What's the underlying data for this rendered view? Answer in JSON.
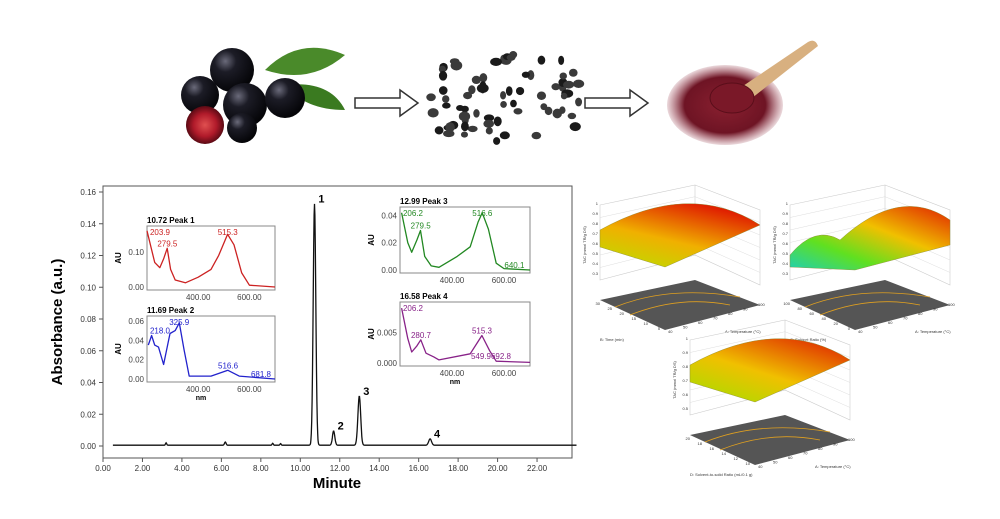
{
  "process": {
    "steps": [
      "fresh aronia berries",
      "dried berries",
      "berry powder"
    ],
    "arrow_color": "#333333"
  },
  "chart_data": {
    "type": "line",
    "title": "",
    "xlabel": "Minute",
    "ylabel": "Absorbance (a.u.)",
    "xlim": [
      0,
      24
    ],
    "ylim": [
      0,
      0.16
    ],
    "xticks": [
      "0.00",
      "2.00",
      "4.00",
      "6.00",
      "8.00",
      "10.00",
      "12.00",
      "14.00",
      "16.00",
      "18.00",
      "20.00",
      "22.00"
    ],
    "yticks": [
      "0.00",
      "0.02",
      "0.04",
      "0.06",
      "0.08",
      "0.10",
      "0.12",
      "0.14",
      "0.16"
    ],
    "line_color": "#111111",
    "peaks": [
      {
        "label": "1",
        "rt": 10.72,
        "height": 0.152,
        "width": 0.13
      },
      {
        "label": "2",
        "rt": 11.69,
        "height": 0.009,
        "width": 0.12
      },
      {
        "label": "3",
        "rt": 12.99,
        "height": 0.031,
        "width": 0.14
      },
      {
        "label": "4",
        "rt": 16.58,
        "height": 0.004,
        "width": 0.14
      }
    ],
    "minor_peaks": [
      {
        "rt": 3.2,
        "height": 0.0015,
        "width": 0.06
      },
      {
        "rt": 6.2,
        "height": 0.002,
        "width": 0.08
      },
      {
        "rt": 8.6,
        "height": 0.0012,
        "width": 0.06
      },
      {
        "rt": 9.0,
        "height": 0.001,
        "width": 0.06
      }
    ],
    "insets": [
      {
        "title": "10.72 Peak 1",
        "color": "#cc2222",
        "ylabel": "AU",
        "xlabel": "",
        "xlim": [
          200,
          700
        ],
        "ylim": [
          0,
          0.165
        ],
        "yticks": [
          {
            "v": 0,
            "t": "0.00"
          },
          {
            "v": 0.1,
            "t": "0.10"
          }
        ],
        "xticks": [
          {
            "v": 400,
            "t": "400.00"
          },
          {
            "v": 600,
            "t": "600.00"
          }
        ],
        "labels": [
          {
            "nm": 203.9,
            "au": 0.16,
            "t": "203.9"
          },
          {
            "nm": 279.5,
            "au": 0.11,
            "t": "279.5"
          },
          {
            "nm": 515.3,
            "au": 0.15,
            "t": "515.3"
          }
        ],
        "points": [
          [
            200,
            0.16
          ],
          [
            230,
            0.07
          ],
          [
            250,
            0.055
          ],
          [
            265,
            0.08
          ],
          [
            279,
            0.11
          ],
          [
            292,
            0.05
          ],
          [
            310,
            0.02
          ],
          [
            350,
            0.012
          ],
          [
            400,
            0.028
          ],
          [
            450,
            0.05
          ],
          [
            480,
            0.09
          ],
          [
            515,
            0.15
          ],
          [
            540,
            0.12
          ],
          [
            570,
            0.04
          ],
          [
            600,
            0.005
          ],
          [
            700,
            0
          ]
        ]
      },
      {
        "title": "11.69 Peak 2",
        "color": "#2222cc",
        "ylabel": "AU",
        "xlabel": "nm",
        "xlim": [
          200,
          700
        ],
        "ylim": [
          0,
          0.062
        ],
        "yticks": [
          {
            "v": 0,
            "t": "0.00"
          },
          {
            "v": 0.02,
            "t": "0.02"
          },
          {
            "v": 0.04,
            "t": "0.04"
          },
          {
            "v": 0.06,
            "t": "0.06"
          }
        ],
        "xticks": [
          {
            "v": 400,
            "t": "400.00"
          },
          {
            "v": 600,
            "t": "600.00"
          }
        ],
        "labels": [
          {
            "nm": 218.0,
            "au": 0.045,
            "t": "218.0"
          },
          {
            "nm": 325.9,
            "au": 0.058,
            "t": "325.9"
          },
          {
            "nm": 516.6,
            "au": 0.009,
            "t": "516.6"
          },
          {
            "nm": 681.8,
            "au": 0.0,
            "t": "681.8"
          }
        ],
        "points": [
          [
            205,
            0.035
          ],
          [
            218,
            0.045
          ],
          [
            230,
            0.035
          ],
          [
            245,
            0.033
          ],
          [
            265,
            0.015
          ],
          [
            290,
            0.047
          ],
          [
            310,
            0.05
          ],
          [
            326,
            0.058
          ],
          [
            345,
            0.03
          ],
          [
            365,
            0.003
          ],
          [
            450,
            0.003
          ],
          [
            516,
            0.009
          ],
          [
            560,
            0.003
          ],
          [
            700,
            0
          ]
        ]
      },
      {
        "title": "12.99 Peak 3",
        "color": "#228822",
        "ylabel": "AU",
        "xlabel": "",
        "xlim": [
          200,
          700
        ],
        "ylim": [
          0,
          0.044
        ],
        "yticks": [
          {
            "v": 0,
            "t": "0.00"
          },
          {
            "v": 0.02,
            "t": "0.02"
          },
          {
            "v": 0.04,
            "t": "0.04"
          }
        ],
        "xticks": [
          {
            "v": 400,
            "t": "400.00"
          },
          {
            "v": 600,
            "t": "600.00"
          }
        ],
        "labels": [
          {
            "nm": 206.2,
            "au": 0.042,
            "t": "206.2"
          },
          {
            "nm": 279.5,
            "au": 0.029,
            "t": "279.5"
          },
          {
            "nm": 516.6,
            "au": 0.042,
            "t": "516.6"
          },
          {
            "nm": 640.1,
            "au": 0.0,
            "t": "640.1"
          }
        ],
        "points": [
          [
            206,
            0.042
          ],
          [
            230,
            0.02
          ],
          [
            245,
            0.013
          ],
          [
            265,
            0.022
          ],
          [
            279,
            0.029
          ],
          [
            295,
            0.01
          ],
          [
            320,
            0.003
          ],
          [
            350,
            0.002
          ],
          [
            420,
            0.01
          ],
          [
            470,
            0.017
          ],
          [
            500,
            0.035
          ],
          [
            516,
            0.042
          ],
          [
            540,
            0.03
          ],
          [
            570,
            0.005
          ],
          [
            600,
            0.001
          ],
          [
            700,
            0
          ]
        ]
      },
      {
        "title": "16.58 Peak 4",
        "color": "#882288",
        "ylabel": "AU",
        "xlabel": "nm",
        "xlim": [
          200,
          700
        ],
        "ylim": [
          0,
          0.0095
        ],
        "yticks": [
          {
            "v": 0,
            "t": "0.000"
          },
          {
            "v": 0.005,
            "t": "0.005"
          }
        ],
        "xticks": [
          {
            "v": 400,
            "t": "400.00"
          },
          {
            "v": 600,
            "t": "600.00"
          }
        ],
        "labels": [
          {
            "nm": 206.2,
            "au": 0.0088,
            "t": "206.2"
          },
          {
            "nm": 280.7,
            "au": 0.0038,
            "t": "280.7"
          },
          {
            "nm": 515.3,
            "au": 0.0045,
            "t": "515.3"
          },
          {
            "nm": 549.9,
            "au": 0.0003,
            "t": "549.9692.8"
          }
        ],
        "points": [
          [
            206,
            0.009
          ],
          [
            230,
            0.004
          ],
          [
            245,
            0.0018
          ],
          [
            265,
            0.0028
          ],
          [
            280,
            0.0038
          ],
          [
            300,
            0.0016
          ],
          [
            330,
            0.001
          ],
          [
            350,
            0.0005
          ],
          [
            470,
            0.0015
          ],
          [
            500,
            0.0035
          ],
          [
            515,
            0.0045
          ],
          [
            545,
            0.002
          ],
          [
            570,
            0.0003
          ],
          [
            700,
            0.0001
          ]
        ]
      }
    ]
  },
  "surfaces": [
    {
      "zlabel": "TAC (mmol TR/g DS)",
      "xlabel": "A: Temperature (°C)",
      "ylabel": "B: Time (min)",
      "zticks": [
        "0.3",
        "0.4",
        "0.5",
        "0.6",
        "0.7",
        "0.8",
        "0.9",
        "1"
      ],
      "xticks": [
        "40",
        "50",
        "60",
        "70",
        "80",
        "90",
        "100"
      ],
      "yticks": [
        "5",
        "10",
        "15",
        "20",
        "25",
        "30"
      ]
    },
    {
      "zlabel": "TAC (mmol TR/g DS)",
      "xlabel": "A: Temperature (°C)",
      "ylabel": "C: Solvent Ratio (%)",
      "zticks": [
        "0.3",
        "0.4",
        "0.5",
        "0.6",
        "0.7",
        "0.8",
        "0.9",
        "1"
      ],
      "xticks": [
        "40",
        "50",
        "60",
        "70",
        "80",
        "90",
        "100"
      ],
      "yticks": [
        "0",
        "20",
        "40",
        "60",
        "80",
        "100"
      ]
    },
    {
      "zlabel": "TAC (mmol TR/g DS)",
      "xlabel": "A: Temperature (°C)",
      "ylabel": "D: Solvent-to-solid Ratio (mL/0.1 g)",
      "zticks": [
        "0.5",
        "0.6",
        "0.7",
        "0.8",
        "0.9",
        "1"
      ],
      "xticks": [
        "40",
        "50",
        "60",
        "70",
        "80",
        "90",
        "100"
      ],
      "yticks": [
        "10",
        "12",
        "14",
        "16",
        "18",
        "20"
      ]
    }
  ]
}
